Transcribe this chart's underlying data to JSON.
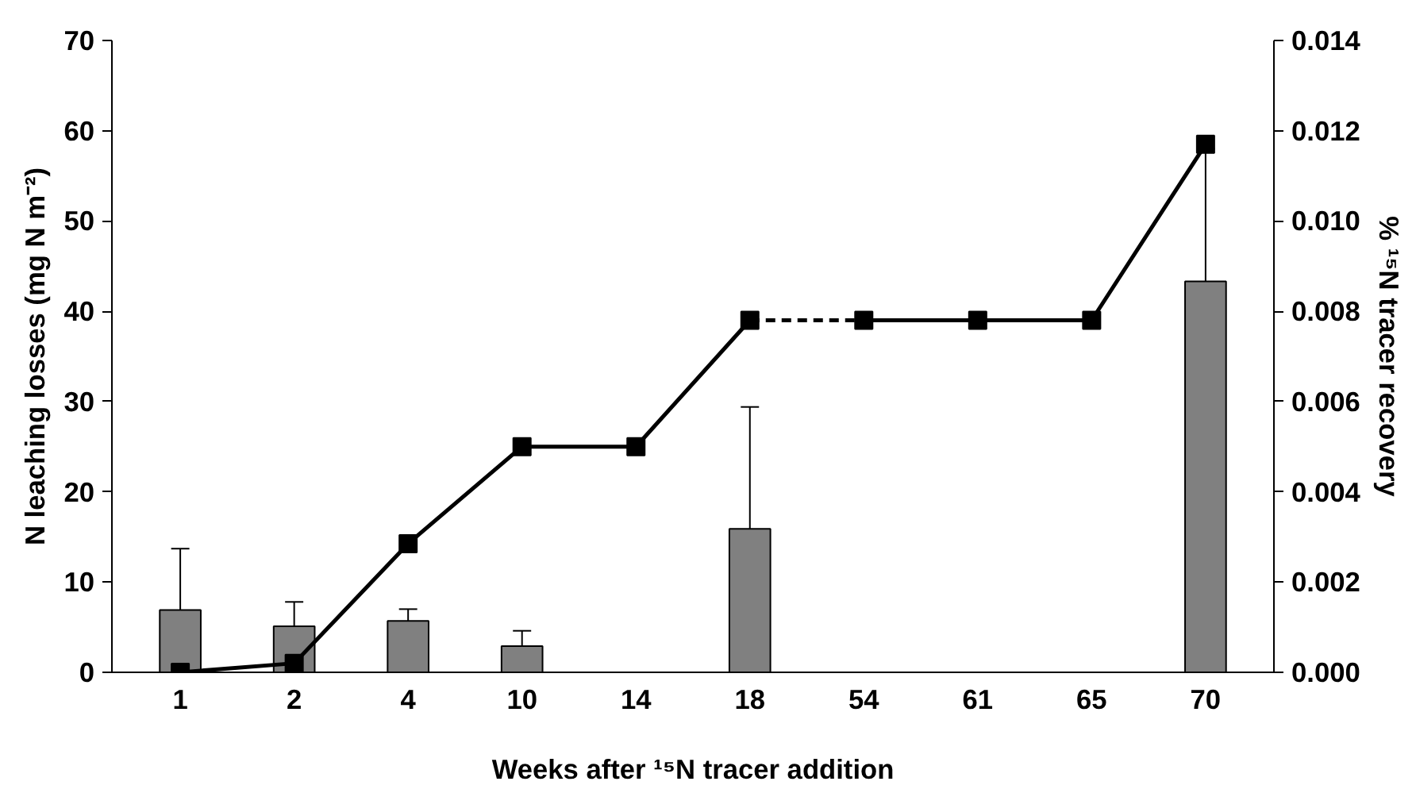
{
  "chart_data": {
    "type": "bar",
    "xlabel": "Weeks after ¹⁵N tracer addition",
    "ylabel": "N leaching losses (mg N m⁻²)",
    "y2label": "% ¹⁵N tracer recovery",
    "categories": [
      "1",
      "2",
      "4",
      "10",
      "14",
      "18",
      "54",
      "61",
      "65",
      "70"
    ],
    "series": [
      {
        "color": "#808080",
        "values": [
          6.9,
          5.1,
          5.7,
          2.9,
          null,
          15.9,
          null,
          null,
          null,
          43.3
        ],
        "errors": [
          [
            6.9,
            13.7
          ],
          [
            5.1,
            7.8
          ],
          [
            5.7,
            7.0
          ],
          [
            2.9,
            4.6
          ],
          null,
          [
            15.9,
            29.4
          ],
          null,
          null,
          null,
          [
            43.3,
            58.0
          ]
        ]
      },
      {
        "type": "line",
        "axis": "y2",
        "color": "#000000",
        "marker": "square",
        "line_style": "solid",
        "values": [
          0.0,
          0.0002,
          0.00285,
          0.005,
          0.005,
          0.0078,
          null,
          null,
          null,
          null
        ]
      },
      {
        "type": "line",
        "axis": "y2",
        "color": "#000000",
        "line_style": "dashed",
        "values": [
          null,
          null,
          null,
          null,
          null,
          0.0078,
          0.0078,
          null,
          null,
          null
        ]
      },
      {
        "type": "line",
        "axis": "y2",
        "color": "#000000",
        "marker": "square",
        "line_style": "solid",
        "values": [
          null,
          null,
          null,
          null,
          null,
          null,
          0.0078,
          0.0078,
          0.0078,
          0.0117
        ]
      }
    ],
    "ylim": [
      0,
      70
    ],
    "yticks": [
      0,
      10,
      20,
      30,
      40,
      50,
      60,
      70
    ],
    "y2lim": [
      0,
      0.014
    ],
    "y2ticks": [
      {
        "value": 0,
        "label": "0.000"
      },
      {
        "value": 0.002,
        "label": "0.002"
      },
      {
        "value": 0.004,
        "label": "0.004"
      },
      {
        "value": 0.006,
        "label": "0.006"
      },
      {
        "value": 0.008,
        "label": "0.008"
      },
      {
        "value": 0.01,
        "label": "0.010"
      },
      {
        "value": 0.012,
        "label": "0.012"
      },
      {
        "value": 0.014,
        "label": "0.014"
      }
    ],
    "grid": false
  }
}
